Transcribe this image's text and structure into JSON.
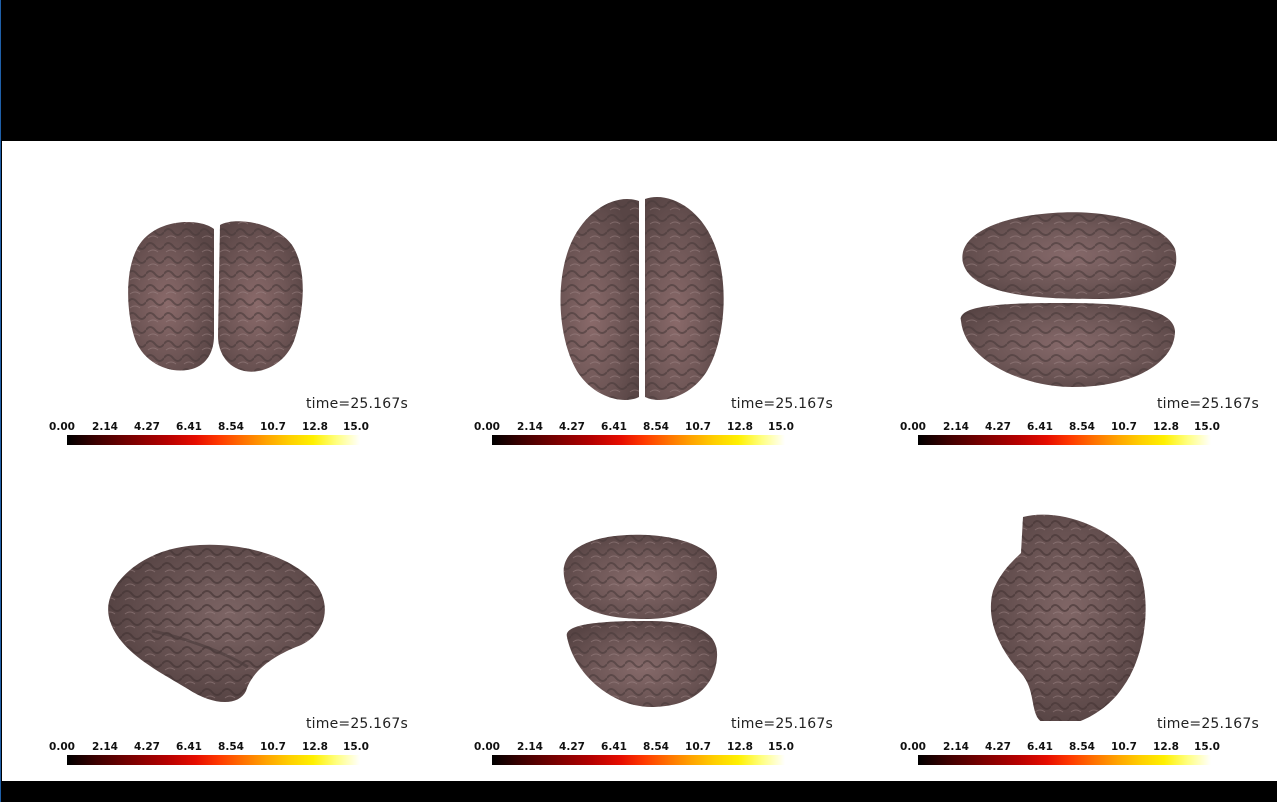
{
  "window": {
    "background": "#000000",
    "canvas_background": "#ffffff"
  },
  "colormap": {
    "name": "hot",
    "min": 0.0,
    "max": 15.0,
    "ticks": [
      "0.00",
      "2.14",
      "4.27",
      "6.41",
      "8.54",
      "10.7",
      "12.8",
      "15.0"
    ]
  },
  "panels": [
    {
      "view": "frontal",
      "time_label": "time=25.167s"
    },
    {
      "view": "dorsal",
      "time_label": "time=25.167s"
    },
    {
      "view": "ventral",
      "time_label": "time=25.167s"
    },
    {
      "view": "lateral",
      "time_label": "time=25.167s"
    },
    {
      "view": "caudal",
      "time_label": "time=25.167s"
    },
    {
      "view": "medial",
      "time_label": "time=25.167s"
    }
  ]
}
